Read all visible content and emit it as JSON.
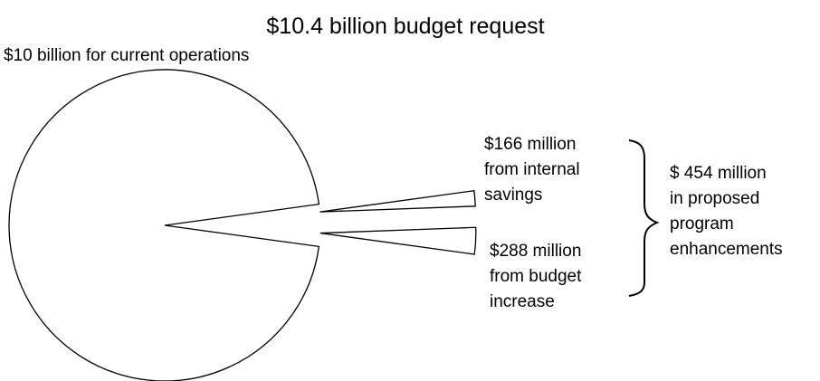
{
  "chart_data": {
    "type": "pie",
    "title": "$10.4 billion budget request",
    "unit": "$ million",
    "slices": [
      {
        "name": "current operations",
        "value": 10000,
        "exploded": false,
        "label": [
          "$10 billion for current operations"
        ]
      },
      {
        "name": "internal savings",
        "value": 166,
        "exploded": true,
        "label": [
          "$166 million",
          "from internal",
          "savings"
        ]
      },
      {
        "name": "budget increase",
        "value": 288,
        "exploded": true,
        "label": [
          "$288 million",
          "from budget",
          "increase"
        ]
      }
    ],
    "annotation": {
      "text": [
        "$ 454 million",
        "in proposed",
        "program",
        "enhancements"
      ],
      "groups": [
        "internal savings",
        "budget increase"
      ]
    },
    "colors": {
      "fill": "#ffffff",
      "stroke": "#000000"
    },
    "legend": "none"
  }
}
